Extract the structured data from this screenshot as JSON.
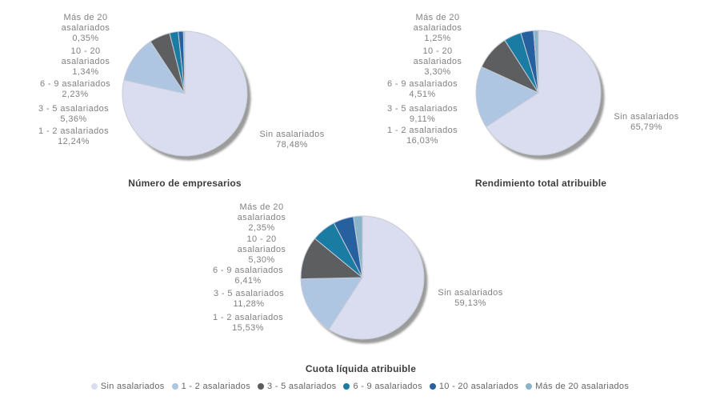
{
  "colors": {
    "slices": [
      "#d9ddef",
      "#aec6e2",
      "#5d5e60",
      "#1a7ba3",
      "#27609f",
      "#8ab4c9"
    ],
    "shadow": "#9b9b9b",
    "slice_border": "#c7ccd6",
    "label_text": "#818181",
    "title_text": "#3d3d3d",
    "legend_text": "#666666",
    "background": "#ffffff"
  },
  "legend": {
    "items": [
      "Sin asalariados",
      "1 - 2 asalariados",
      "3 - 5 asalariados",
      "6 - 9 asalariados",
      "10 - 20 asalariados",
      "Más de 20 asalariados"
    ]
  },
  "charts": [
    {
      "title": "Número de empresarios",
      "labels": [
        {
          "lines": [
            "Más de 20",
            "asalariados",
            "0,35%"
          ]
        },
        {
          "lines": [
            "10 - 20",
            "asalariados",
            "1,34%"
          ]
        },
        {
          "lines": [
            "6 - 9 asalariados",
            "2,23%"
          ]
        },
        {
          "lines": [
            "3 - 5 asalariados",
            "5,36%"
          ]
        },
        {
          "lines": [
            "1 - 2 asalariados",
            "12,24%"
          ]
        },
        {
          "lines": [
            "Sin asalariados",
            "78,48%"
          ]
        }
      ]
    },
    {
      "title": "Rendimiento total atribuible",
      "labels": [
        {
          "lines": [
            "Más de 20",
            "asalariados",
            "1,25%"
          ]
        },
        {
          "lines": [
            "10 - 20",
            "asalariados",
            "3,30%"
          ]
        },
        {
          "lines": [
            "6 - 9 asalariados",
            "4,51%"
          ]
        },
        {
          "lines": [
            "3 - 5 asalariados",
            "9,11%"
          ]
        },
        {
          "lines": [
            "1 - 2 asalariados",
            "16,03%"
          ]
        },
        {
          "lines": [
            "Sin asalariados",
            "65,79%"
          ]
        }
      ]
    },
    {
      "title": "Cuota líquida atribuible",
      "labels": [
        {
          "lines": [
            "Más de 20",
            "asalariados",
            "2,35%"
          ]
        },
        {
          "lines": [
            "10 - 20",
            "asalariados",
            "5,30%"
          ]
        },
        {
          "lines": [
            "6 - 9 asalariados",
            "6,41%"
          ]
        },
        {
          "lines": [
            "3 - 5 asalariados",
            "11,28%"
          ]
        },
        {
          "lines": [
            "1 - 2 asalariados",
            "15,53%"
          ]
        },
        {
          "lines": [
            "Sin asalariados",
            "59,13%"
          ]
        }
      ]
    }
  ],
  "chart_data": [
    {
      "type": "pie",
      "title": "Número de empresarios",
      "categories": [
        "Sin asalariados",
        "1 - 2 asalariados",
        "3 - 5 asalariados",
        "6 - 9 asalariados",
        "10 - 20 asalariados",
        "Más de 20 asalariados"
      ],
      "values": [
        78.48,
        12.24,
        5.36,
        2.23,
        1.34,
        0.35
      ],
      "value_format": "percent, comma decimal",
      "start_angle_deg": 0,
      "direction": "clockwise",
      "legend_position": "bottom-shared"
    },
    {
      "type": "pie",
      "title": "Rendimiento total atribuible",
      "categories": [
        "Sin asalariados",
        "1 - 2 asalariados",
        "3 - 5 asalariados",
        "6 - 9 asalariados",
        "10 - 20 asalariados",
        "Más de 20 asalariados"
      ],
      "values": [
        65.79,
        16.03,
        9.11,
        4.51,
        3.3,
        1.25
      ],
      "value_format": "percent, comma decimal",
      "start_angle_deg": 0,
      "direction": "clockwise",
      "legend_position": "bottom-shared"
    },
    {
      "type": "pie",
      "title": "Cuota líquida atribuible",
      "categories": [
        "Sin asalariados",
        "1 - 2 asalariados",
        "3 - 5 asalariados",
        "6 - 9 asalariados",
        "10 - 20 asalariados",
        "Más de 20 asalariados"
      ],
      "values": [
        59.13,
        15.53,
        11.28,
        6.41,
        5.3,
        2.35
      ],
      "value_format": "percent, comma decimal",
      "start_angle_deg": 0,
      "direction": "clockwise",
      "legend_position": "bottom-shared"
    }
  ]
}
